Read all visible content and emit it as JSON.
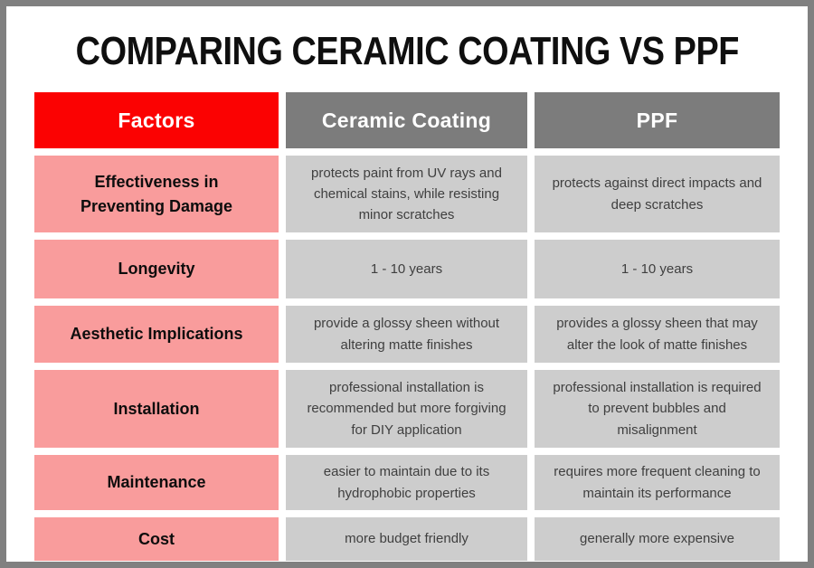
{
  "title": "COMPARING CERAMIC COATING VS PPF",
  "table": {
    "headers": {
      "factors": "Factors",
      "ceramic": "Ceramic Coating",
      "ppf": "PPF"
    },
    "rows": [
      {
        "factor": "Effectiveness in Preventing Damage",
        "ceramic": "protects paint from UV rays and chemical stains, while resisting minor scratches",
        "ppf": "protects against direct impacts and deep scratches"
      },
      {
        "factor": "Longevity",
        "ceramic": "1 - 10 years",
        "ppf": "1 - 10 years"
      },
      {
        "factor": "Aesthetic Implications",
        "ceramic": "provide a glossy sheen without altering matte finishes",
        "ppf": "provides a glossy sheen that may alter the look of matte finishes"
      },
      {
        "factor": "Installation",
        "ceramic": "professional installation is recommended but more forgiving for DIY application",
        "ppf": "professional installation is required to prevent bubbles and misalignment"
      },
      {
        "factor": "Maintenance",
        "ceramic": "easier to maintain due to its hydrophobic properties",
        "ppf": "requires more frequent cleaning to maintain its performance"
      },
      {
        "factor": "Cost",
        "ceramic": "more budget friendly",
        "ppf": "generally more expensive"
      }
    ]
  },
  "colors": {
    "frame_gray": "#808080",
    "accent_red": "#fb0202",
    "header_gray": "#7c7c7c",
    "factor_pink": "#f99c9c",
    "cell_gray": "#cdcdcd",
    "title_black": "#0f0f0f",
    "body_text": "#3f3f3f"
  }
}
